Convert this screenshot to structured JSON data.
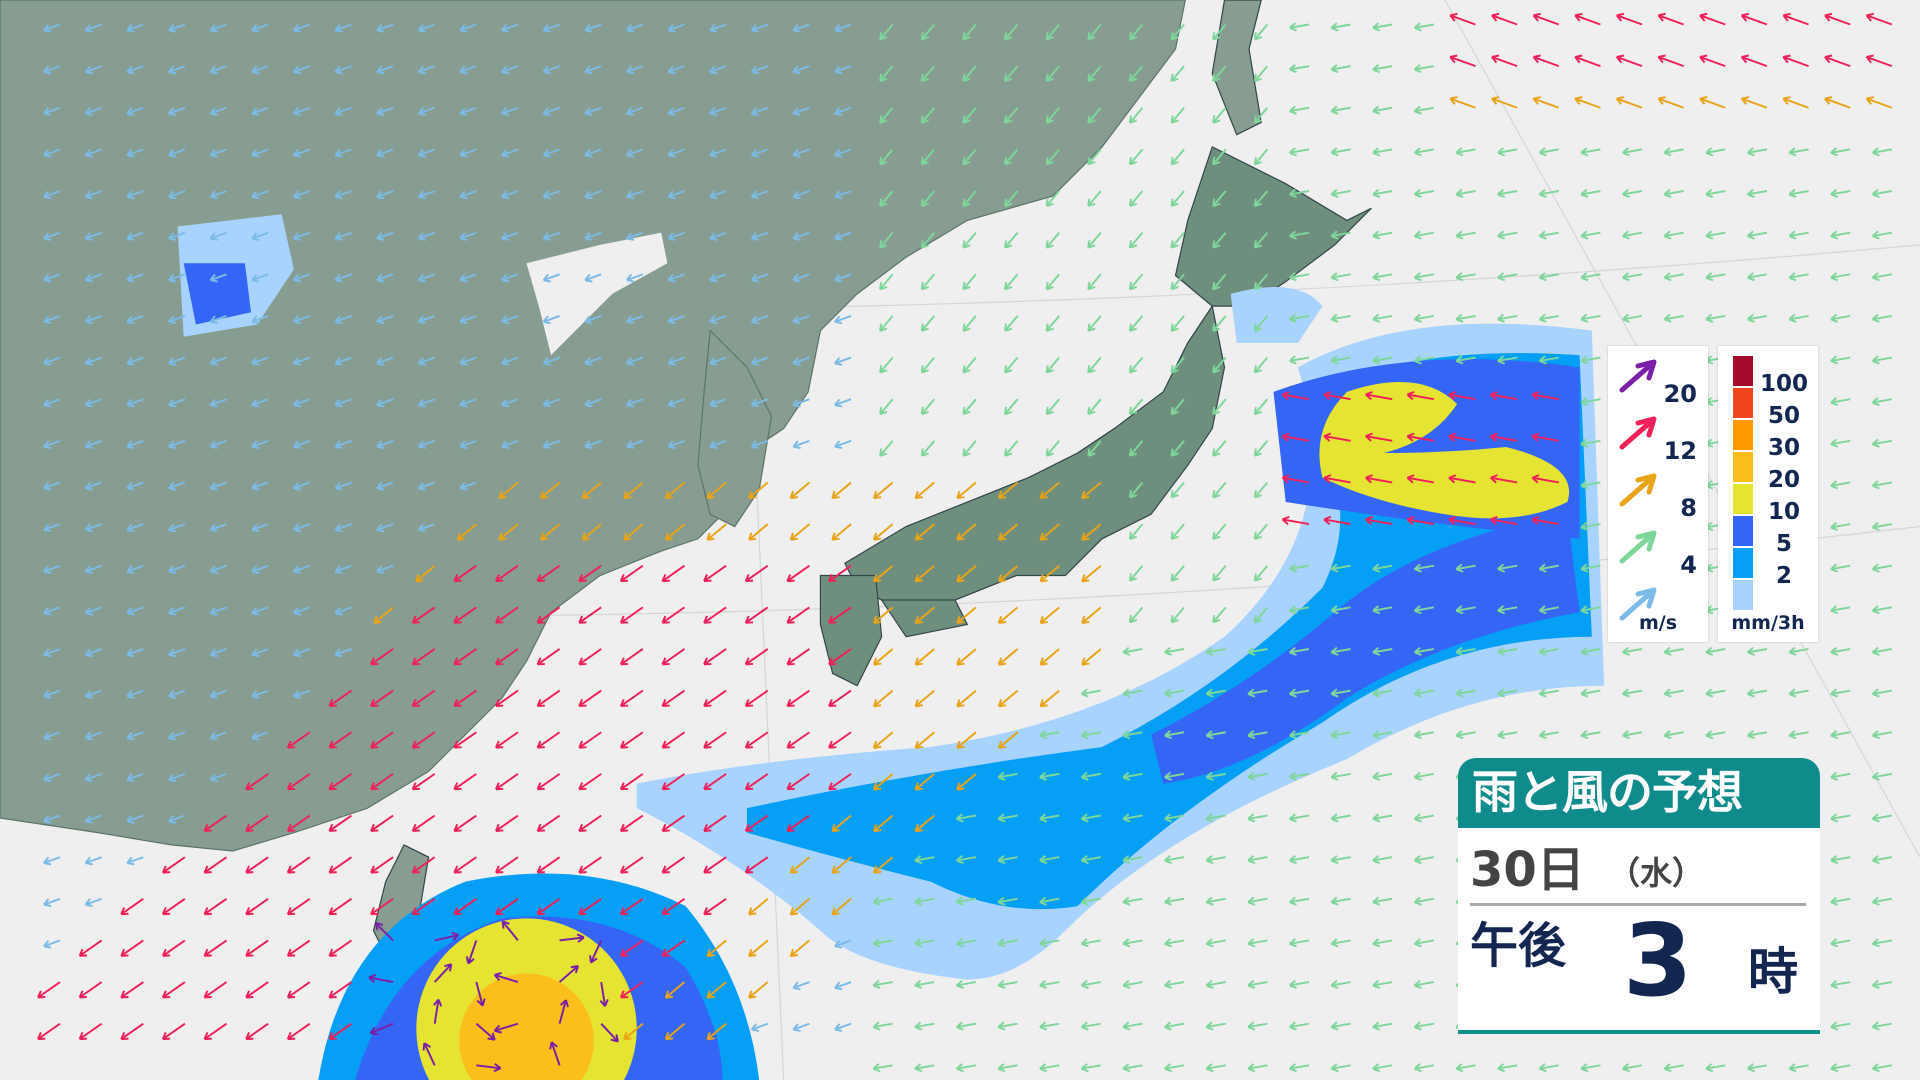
{
  "colors": {
    "continent": "#879d91",
    "japan": "#6f8f7e",
    "sea": "#efefef",
    "accent": "#0e8b8a",
    "text": "#13264f"
  },
  "wind_legend": {
    "unit": "m/s",
    "items": [
      {
        "value": "20",
        "color": "#7a1fa6"
      },
      {
        "value": "12",
        "color": "#f0205a"
      },
      {
        "value": "8",
        "color": "#e8a316"
      },
      {
        "value": "4",
        "color": "#7ed69a"
      },
      {
        "value": "",
        "color": "#7bbbe6"
      }
    ]
  },
  "rain_legend": {
    "unit": "mm/3h",
    "items": [
      {
        "value": "100",
        "color": "#a50b2b"
      },
      {
        "value": "50",
        "color": "#f0441c"
      },
      {
        "value": "30",
        "color": "#ff9a00"
      },
      {
        "value": "20",
        "color": "#fbbf1c"
      },
      {
        "value": "10",
        "color": "#e6e432"
      },
      {
        "value": "5",
        "color": "#3565f5"
      },
      {
        "value": "2",
        "color": "#059ff5"
      },
      {
        "value": "",
        "color": "#a8d2ff"
      }
    ]
  },
  "title": {
    "heading": "雨と風の予想",
    "day": "30日",
    "dow": "（水）",
    "ampm": "午後",
    "hour": "3",
    "hour_unit": "時"
  }
}
